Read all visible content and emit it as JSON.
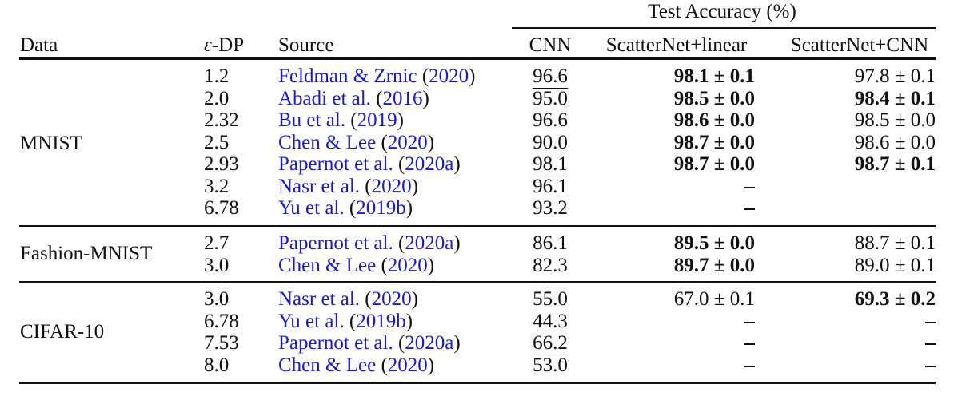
{
  "header": {
    "group_title": "Test Accuracy (%)",
    "data": "Data",
    "eps_symbol": "ε",
    "eps_suffix": "-DP",
    "source": "Source",
    "cnn": "CNN",
    "scatter_linear": "ScatterNet+linear",
    "scatter_cnn": "ScatterNet+CNN"
  },
  "groups": [
    {
      "name": "MNIST",
      "rows": [
        {
          "eps": "1.2",
          "author": "Feldman & Zrnic",
          "year": "2020",
          "cnn": "96.6",
          "cnn_ul": true,
          "lin": "98.1 ± 0.1",
          "lin_bold": true,
          "sc": "97.8 ± 0.1",
          "sc_bold": false
        },
        {
          "eps": "2.0",
          "author": "Abadi et al.",
          "year": "2016",
          "cnn": "95.0",
          "cnn_ul": false,
          "lin": "98.5 ± 0.0",
          "lin_bold": true,
          "sc": "98.4 ± 0.1",
          "sc_bold": true
        },
        {
          "eps": "2.32",
          "author": "Bu et al.",
          "year": "2019",
          "cnn": "96.6",
          "cnn_ul": false,
          "lin": "98.6 ± 0.0",
          "lin_bold": true,
          "sc": "98.5 ± 0.0",
          "sc_bold": false
        },
        {
          "eps": "2.5",
          "author": "Chen & Lee",
          "year": "2020",
          "cnn": "90.0",
          "cnn_ul": false,
          "lin": "98.7 ± 0.0",
          "lin_bold": true,
          "sc": "98.6 ± 0.0",
          "sc_bold": false
        },
        {
          "eps": "2.93",
          "author": "Papernot et al.",
          "year": "2020a",
          "cnn": "98.1",
          "cnn_ul": true,
          "lin": "98.7 ± 0.0",
          "lin_bold": true,
          "sc": "98.7 ± 0.1",
          "sc_bold": true
        },
        {
          "eps": "3.2",
          "author": "Nasr et al.",
          "year": "2020",
          "cnn": "96.1",
          "cnn_ul": false,
          "lin": "–",
          "lin_bold": false,
          "sc": "",
          "sc_bold": false
        },
        {
          "eps": "6.78",
          "author": "Yu et al.",
          "year": "2019b",
          "cnn": "93.2",
          "cnn_ul": false,
          "lin": "–",
          "lin_bold": false,
          "sc": "",
          "sc_bold": false
        }
      ]
    },
    {
      "name": "Fashion-MNIST",
      "rows": [
        {
          "eps": "2.7",
          "author": "Papernot et al.",
          "year": "2020a",
          "cnn": "86.1",
          "cnn_ul": true,
          "lin": "89.5 ± 0.0",
          "lin_bold": true,
          "sc": "88.7 ± 0.1",
          "sc_bold": false
        },
        {
          "eps": "3.0",
          "author": "Chen & Lee",
          "year": "2020",
          "cnn": "82.3",
          "cnn_ul": false,
          "lin": "89.7 ± 0.0",
          "lin_bold": true,
          "sc": "89.0 ± 0.1",
          "sc_bold": false
        }
      ]
    },
    {
      "name": "CIFAR-10",
      "rows": [
        {
          "eps": "3.0",
          "author": "Nasr et al.",
          "year": "2020",
          "cnn": "55.0",
          "cnn_ul": true,
          "lin": "67.0 ± 0.1",
          "lin_bold": false,
          "sc": "69.3 ± 0.2",
          "sc_bold": true
        },
        {
          "eps": "6.78",
          "author": "Yu et al.",
          "year": "2019b",
          "cnn": "44.3",
          "cnn_ul": false,
          "lin": "–",
          "lin_bold": false,
          "sc": "–",
          "sc_bold": false
        },
        {
          "eps": "7.53",
          "author": "Papernot et al.",
          "year": "2020a",
          "cnn": "66.2",
          "cnn_ul": true,
          "lin": "–",
          "lin_bold": false,
          "sc": "–",
          "sc_bold": false
        },
        {
          "eps": "8.0",
          "author": "Chen & Lee",
          "year": "2020",
          "cnn": "53.0",
          "cnn_ul": false,
          "lin": "–",
          "lin_bold": false,
          "sc": "–",
          "sc_bold": false
        }
      ]
    }
  ]
}
